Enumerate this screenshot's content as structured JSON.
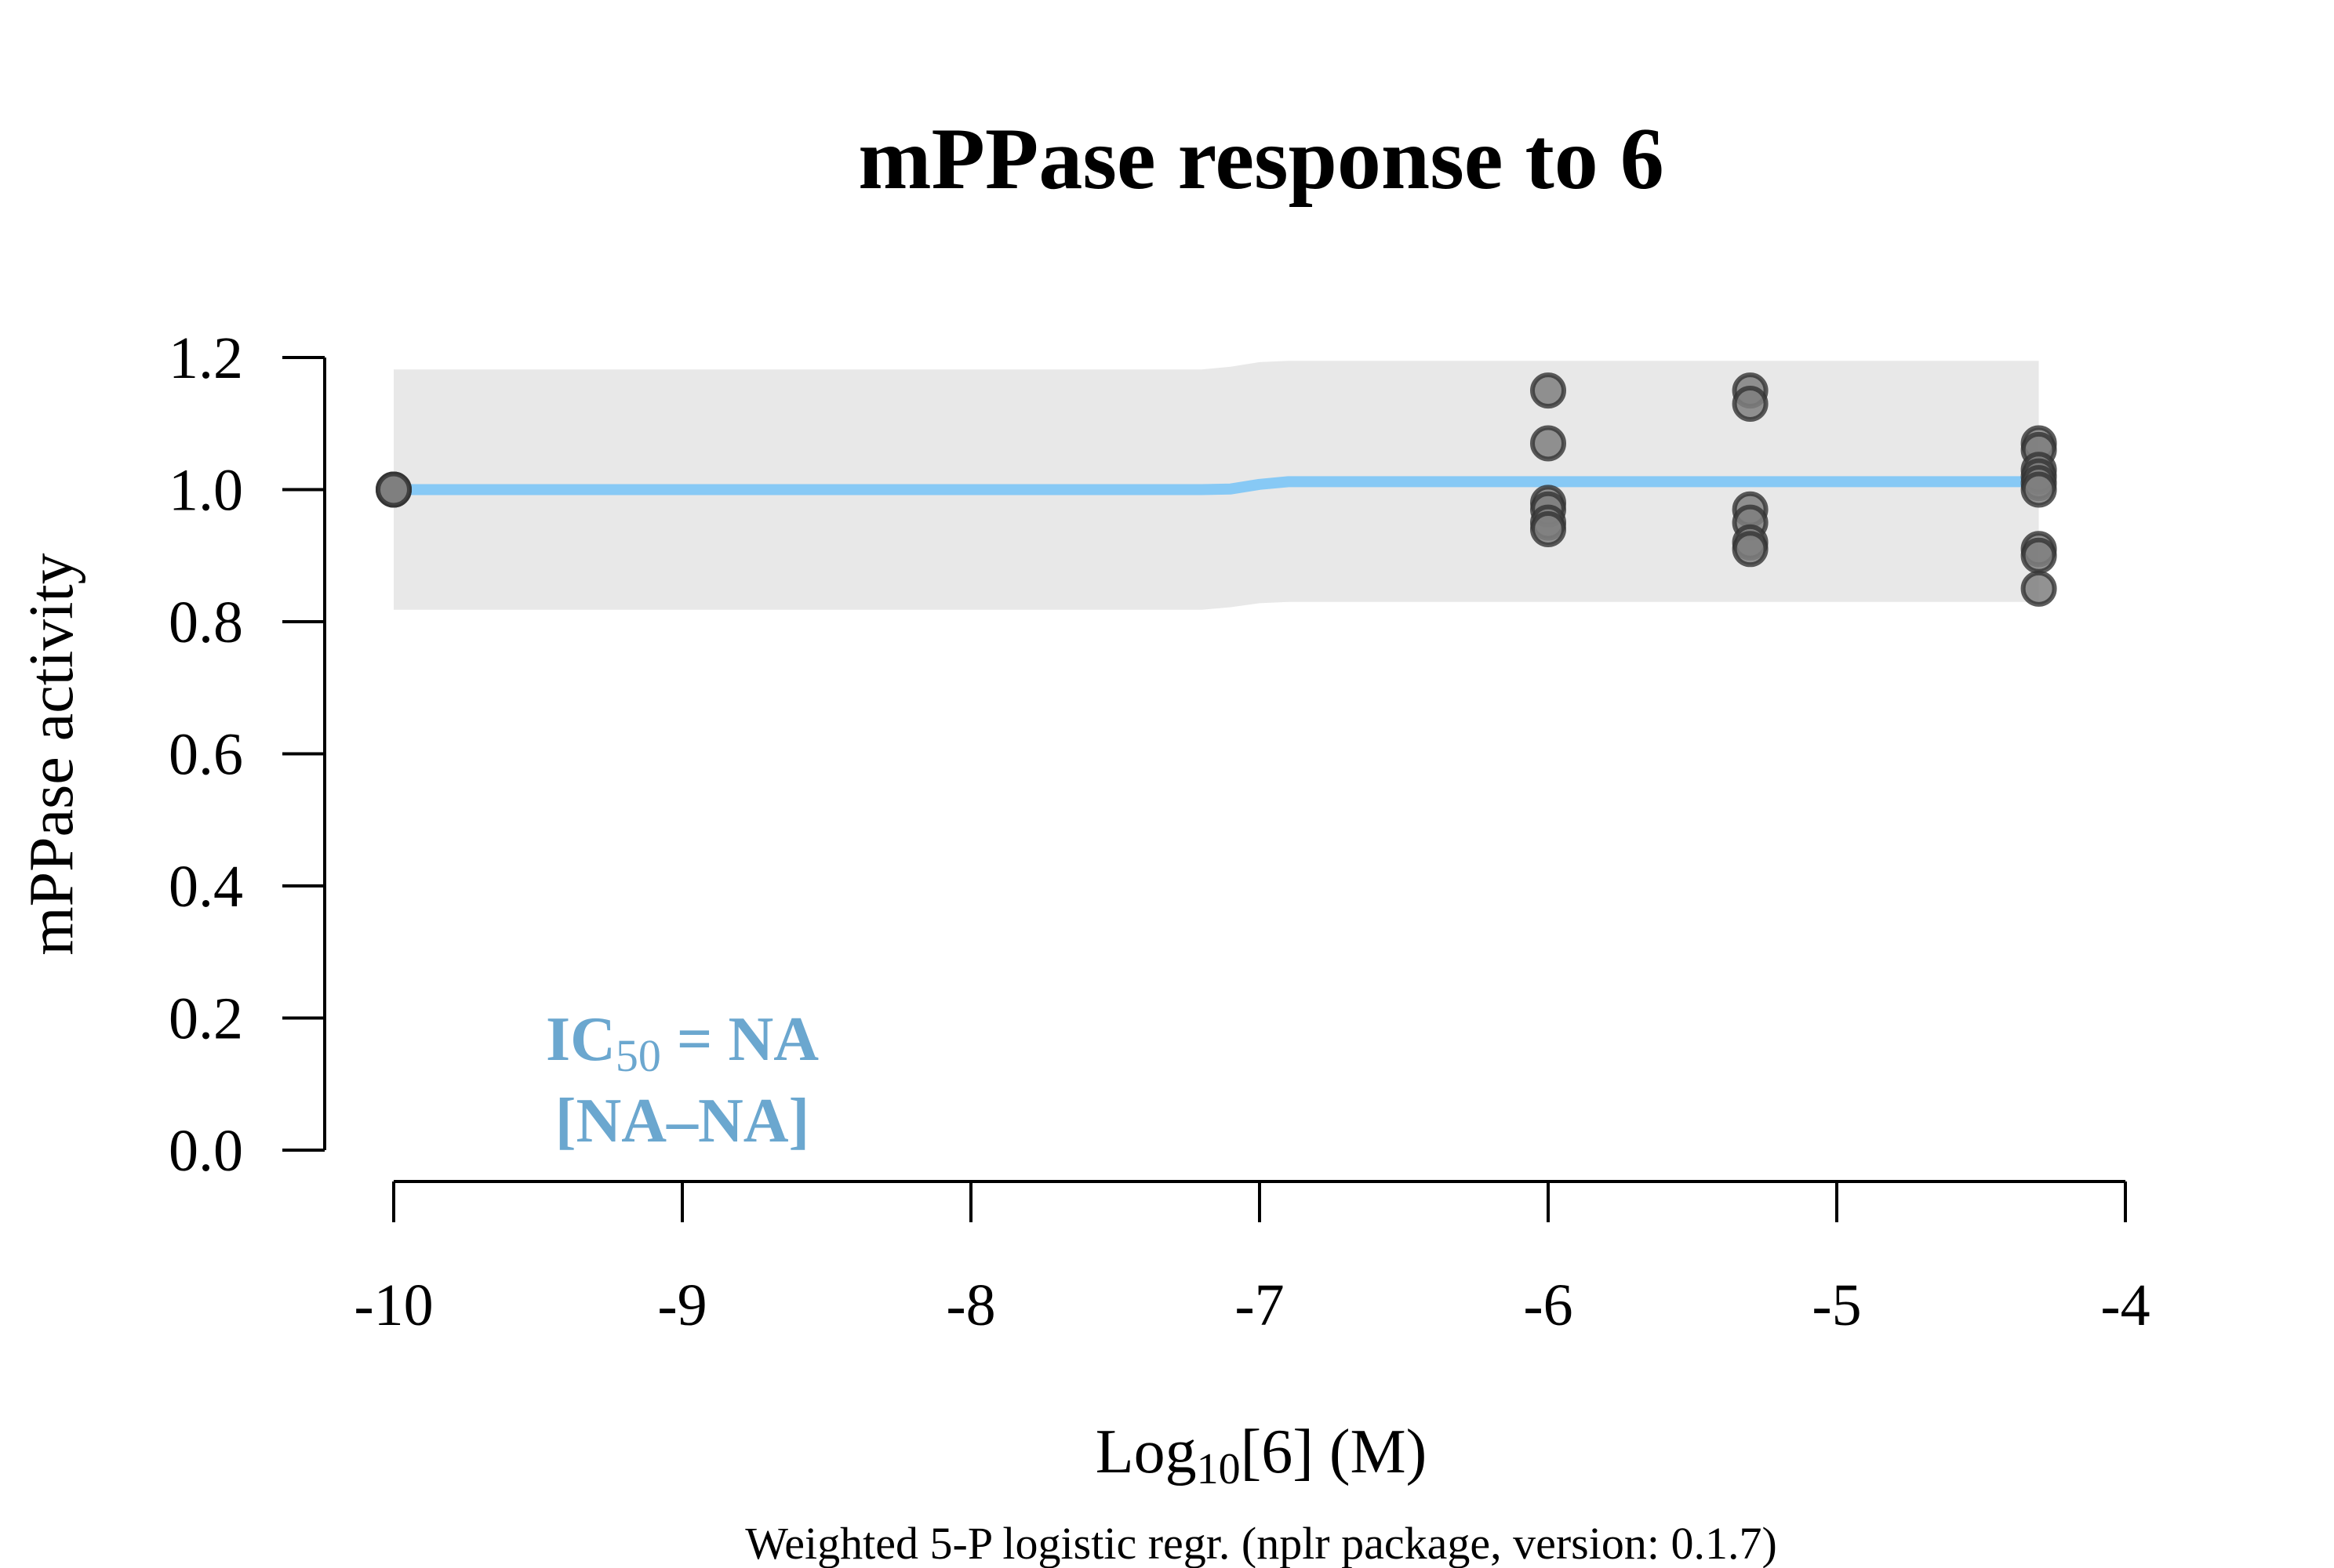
{
  "chart_data": {
    "type": "scatter",
    "title": "mPPase response to 6",
    "xlabel": {
      "prefix": "Log",
      "sub": "10",
      "suffix": "[6] (M)"
    },
    "ylabel": "mPPase activity",
    "footnote": "Weighted 5-P logistic regr. (nplr package, version: 0.1.7)",
    "annotation": {
      "line1": {
        "prefix": "IC",
        "sub": "50",
        "suffix": " = NA"
      },
      "line2": "[NA–NA]",
      "color": "#6ba7cf"
    },
    "xlim": [
      -10,
      -4
    ],
    "ylim": [
      0,
      1.2
    ],
    "x_ticks": [
      -10,
      -9,
      -8,
      -7,
      -6,
      -5,
      -4
    ],
    "x_tick_labels": [
      "-10",
      "-9",
      "-8",
      "-7",
      "-6",
      "-5",
      "-4"
    ],
    "y_ticks": [
      0,
      0.2,
      0.4,
      0.6,
      0.8,
      1.0,
      1.2
    ],
    "y_tick_labels": [
      "0.0",
      "0.2",
      "0.4",
      "0.6",
      "0.8",
      "1.0",
      "1.2"
    ],
    "points": [
      {
        "x": -10,
        "y": 1.0
      },
      {
        "x": -10,
        "y": 1.0
      },
      {
        "x": -10,
        "y": 1.0
      },
      {
        "x": -6,
        "y": 1.15
      },
      {
        "x": -6,
        "y": 1.07
      },
      {
        "x": -6,
        "y": 0.98
      },
      {
        "x": -6,
        "y": 0.97
      },
      {
        "x": -6,
        "y": 0.95
      },
      {
        "x": -6,
        "y": 0.94
      },
      {
        "x": -5.3,
        "y": 1.15
      },
      {
        "x": -5.3,
        "y": 1.13
      },
      {
        "x": -5.3,
        "y": 0.97
      },
      {
        "x": -5.3,
        "y": 0.95
      },
      {
        "x": -5.3,
        "y": 0.92
      },
      {
        "x": -5.3,
        "y": 0.91
      },
      {
        "x": -4.3,
        "y": 1.07
      },
      {
        "x": -4.3,
        "y": 1.06
      },
      {
        "x": -4.3,
        "y": 1.03
      },
      {
        "x": -4.3,
        "y": 1.02
      },
      {
        "x": -4.3,
        "y": 1.01
      },
      {
        "x": -4.3,
        "y": 1.0
      },
      {
        "x": -4.3,
        "y": 0.91
      },
      {
        "x": -4.3,
        "y": 0.9
      },
      {
        "x": -4.3,
        "y": 0.85
      }
    ],
    "fit_curve": [
      {
        "x": -10,
        "y": 1.0
      },
      {
        "x": -7.2,
        "y": 1.0
      },
      {
        "x": -7.1,
        "y": 1.001
      },
      {
        "x": -7.0,
        "y": 1.008
      },
      {
        "x": -6.9,
        "y": 1.012
      },
      {
        "x": -4.3,
        "y": 1.012
      }
    ],
    "confidence_band": [
      {
        "x": -10,
        "lo": 0.818,
        "hi": 1.182
      },
      {
        "x": -7.2,
        "lo": 0.818,
        "hi": 1.182
      },
      {
        "x": -7.1,
        "lo": 0.822,
        "hi": 1.186
      },
      {
        "x": -7.0,
        "lo": 0.828,
        "hi": 1.193
      },
      {
        "x": -6.9,
        "lo": 0.83,
        "hi": 1.195
      },
      {
        "x": -4.3,
        "lo": 0.83,
        "hi": 1.195
      }
    ],
    "colors": {
      "curve": "#87c9f5",
      "band": "#e8e8e8",
      "point_fill": "#7f7f7f",
      "point_stroke": "#333333"
    },
    "grid": false,
    "legend": "none"
  }
}
